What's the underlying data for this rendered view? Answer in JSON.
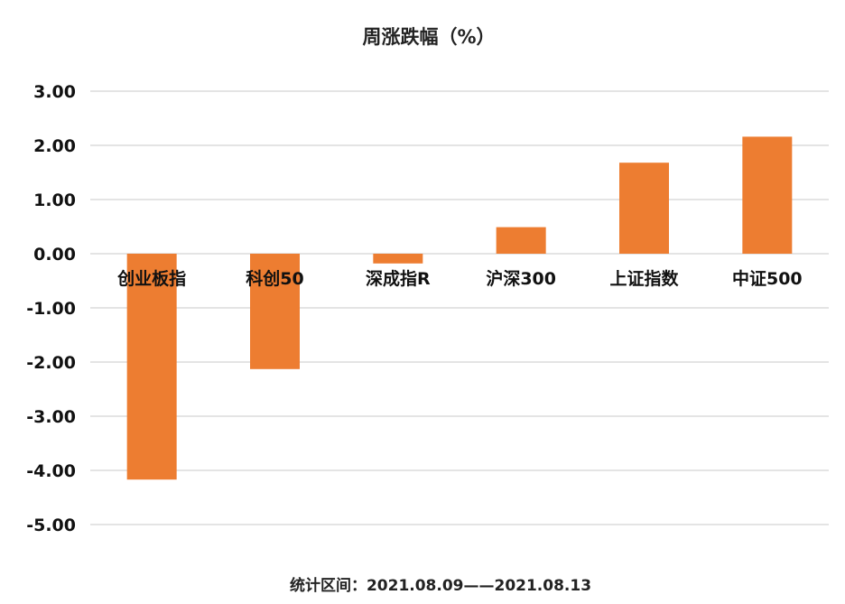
{
  "chart_data": {
    "type": "bar",
    "title": "周涨跌幅（%）",
    "categories": [
      "创业板指",
      "科创50",
      "深成指R",
      "沪深300",
      "上证指数",
      "中证500"
    ],
    "values": [
      -4.17,
      -2.13,
      -0.18,
      0.49,
      1.68,
      2.16
    ],
    "ylim": [
      -5,
      3
    ],
    "yticks": [
      "3.00",
      "2.00",
      "1.00",
      "0.00",
      "-1.00",
      "-2.00",
      "-3.00",
      "-4.00",
      "-5.00"
    ],
    "grid": true,
    "bar_color": "#ED7D31",
    "footnote": "统计区间：2021.08.09——2021.08.13"
  }
}
